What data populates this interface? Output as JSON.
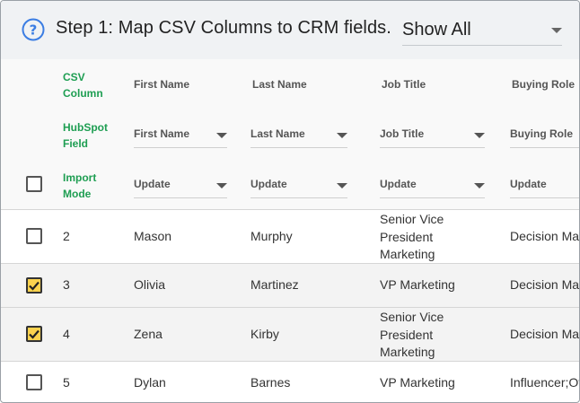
{
  "header": {
    "title": "Step 1: Map CSV Columns to CRM fields.",
    "filter_value": "Show All"
  },
  "mapping_header": {
    "csv_column_label_line1": "CSV",
    "csv_column_label_line2": "Column",
    "hubspot_field_label_line1": "HubSpot",
    "hubspot_field_label_line2": "Field",
    "import_mode_label_line1": "Import",
    "import_mode_label_line2": "Mode",
    "csv_columns": [
      "First Name",
      "Last Name",
      "Job Title",
      "Buying Role"
    ],
    "hubspot_fields": [
      "First Name",
      "Last Name",
      "Job Title",
      "Buying Role"
    ],
    "import_modes": [
      "Update",
      "Update",
      "Update",
      "Update"
    ]
  },
  "rows": [
    {
      "num": "2",
      "first": "Mason",
      "last": "Murphy",
      "job_lines": [
        "Senior Vice",
        "President",
        "Marketing"
      ],
      "role": "Decision Mak",
      "checked": false
    },
    {
      "num": "3",
      "first": "Olivia",
      "last": "Martinez",
      "job_lines": [
        "VP Marketing"
      ],
      "role": "Decision Mak",
      "checked": true
    },
    {
      "num": "4",
      "first": "Zena",
      "last": "Kirby",
      "job_lines": [
        "Senior Vice",
        "President",
        "Marketing"
      ],
      "role": "Decision Mak",
      "checked": true
    },
    {
      "num": "5",
      "first": "Dylan",
      "last": "Barnes",
      "job_lines": [
        "VP Marketing"
      ],
      "role": "Influencer;Oth",
      "checked": false
    }
  ],
  "colors": {
    "accent_green": "#1e9e52",
    "check_yellow": "#fbd24e",
    "help_blue": "#3b7de3"
  }
}
